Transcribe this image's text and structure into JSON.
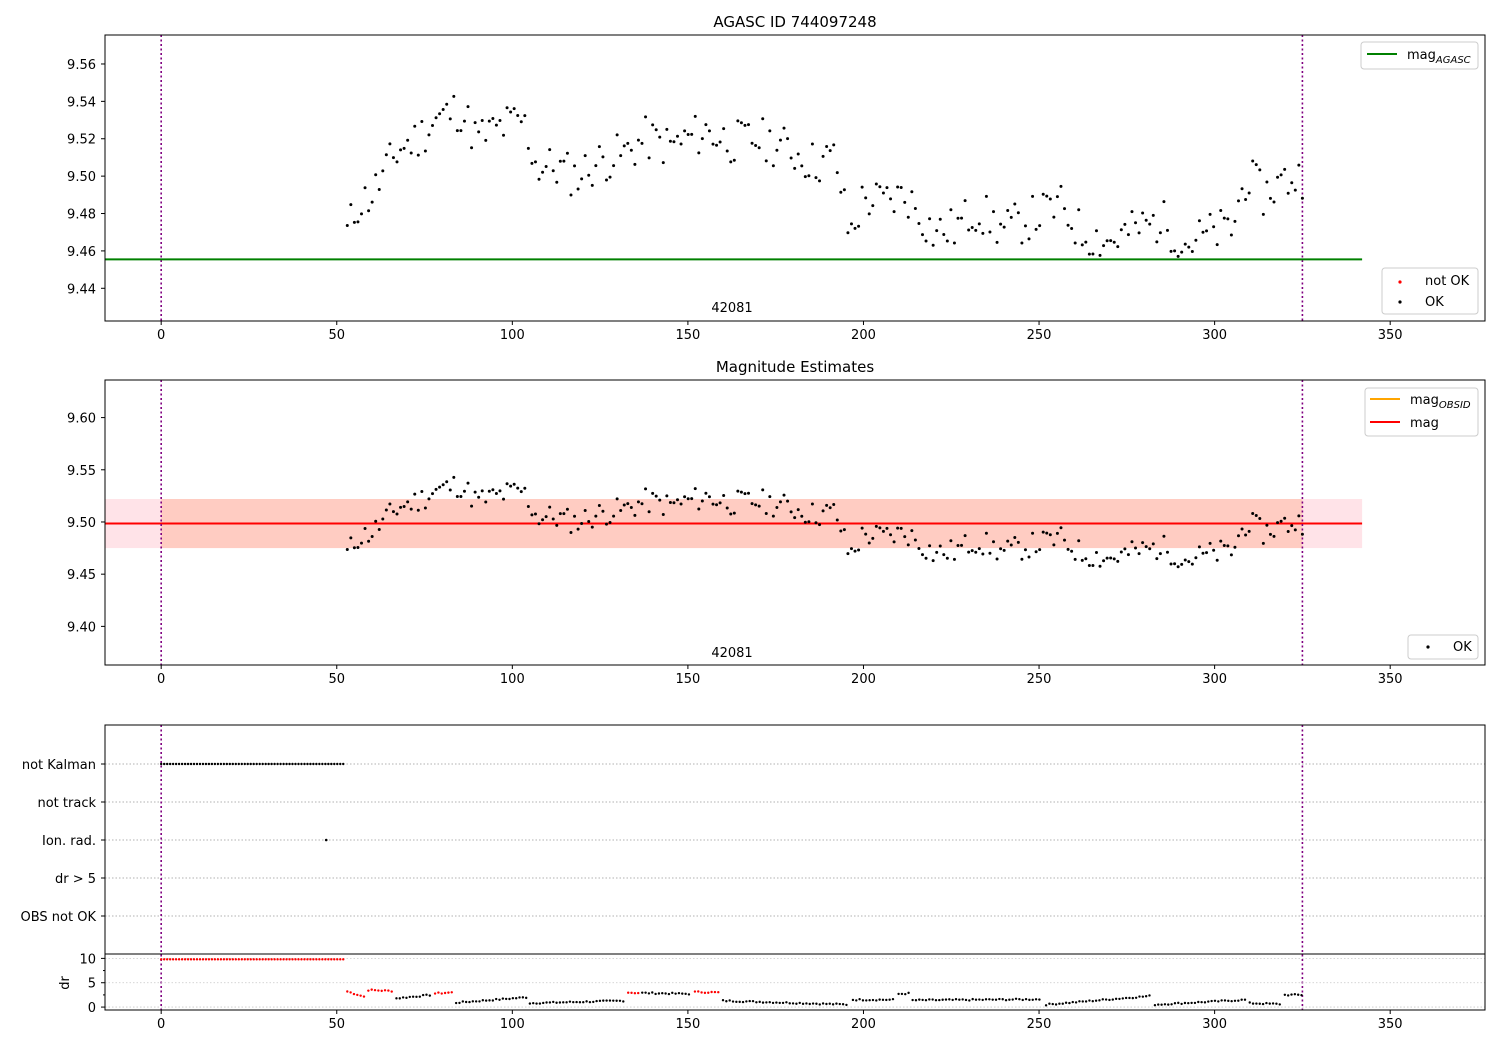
{
  "chart_data": [
    {
      "type": "scatter",
      "title": "AGASC ID 744097248",
      "annotation": "42081",
      "x_ticks": [
        "0",
        "50",
        "100",
        "150",
        "200",
        "250",
        "300",
        "350"
      ],
      "y_ticks": [
        "9.44",
        "9.46",
        "9.48",
        "9.50",
        "9.52",
        "9.54",
        "9.56"
      ],
      "xlim": [
        -16,
        377
      ],
      "ylim": [
        9.4225,
        9.5755
      ],
      "vlines": [
        0,
        325
      ],
      "hline": {
        "name": "mag_AGASC",
        "value": 9.4555,
        "x_end": 342,
        "color": "#008000"
      },
      "legend_lines": [
        {
          "label": "mag",
          "subscript": "AGASC",
          "color": "#008000"
        }
      ],
      "legend_points": [
        {
          "label": "not OK",
          "color": "#ff0000"
        },
        {
          "label": "OK",
          "color": "#000000"
        }
      ],
      "series": [
        {
          "name": "OK",
          "color": "#000000",
          "x_start": 53,
          "x_end": 325,
          "count": 270,
          "anchors": [
            [
              53,
              9.47
            ],
            [
              56,
              9.485
            ],
            [
              60,
              9.49
            ],
            [
              65,
              9.506
            ],
            [
              68,
              9.515
            ],
            [
              73,
              9.52
            ],
            [
              78,
              9.53
            ],
            [
              85,
              9.536
            ],
            [
              90,
              9.52
            ],
            [
              98,
              9.527
            ],
            [
              103,
              9.53
            ],
            [
              107,
              9.505
            ],
            [
              112,
              9.505
            ],
            [
              118,
              9.5
            ],
            [
              125,
              9.508
            ],
            [
              132,
              9.512
            ],
            [
              138,
              9.52
            ],
            [
              145,
              9.516
            ],
            [
              155,
              9.524
            ],
            [
              163,
              9.518
            ],
            [
              170,
              9.52
            ],
            [
              178,
              9.515
            ],
            [
              186,
              9.507
            ],
            [
              192,
              9.51
            ],
            [
              196,
              9.468
            ],
            [
              200,
              9.488
            ],
            [
              206,
              9.486
            ],
            [
              212,
              9.49
            ],
            [
              220,
              9.47
            ],
            [
              226,
              9.472
            ],
            [
              232,
              9.482
            ],
            [
              240,
              9.471
            ],
            [
              248,
              9.478
            ],
            [
              256,
              9.484
            ],
            [
              262,
              9.47
            ],
            [
              270,
              9.465
            ],
            [
              278,
              9.472
            ],
            [
              285,
              9.476
            ],
            [
              292,
              9.464
            ],
            [
              300,
              9.47
            ],
            [
              305,
              9.472
            ],
            [
              309,
              9.5
            ],
            [
              314,
              9.49
            ],
            [
              319,
              9.497
            ],
            [
              325,
              9.5
            ]
          ]
        }
      ]
    },
    {
      "type": "scatter",
      "title": "Magnitude Estimates",
      "annotation": "42081",
      "x_ticks": [
        "0",
        "50",
        "100",
        "150",
        "200",
        "250",
        "300",
        "350"
      ],
      "y_ticks": [
        "9.40",
        "9.45",
        "9.50",
        "9.55",
        "9.60"
      ],
      "xlim": [
        -16,
        377
      ],
      "ylim": [
        9.363,
        9.636
      ],
      "vlines": [
        0,
        325
      ],
      "mag_line": {
        "value": 9.4985,
        "color": "#ff0000"
      },
      "band": {
        "low": 9.475,
        "high": 9.522,
        "x_end": 342,
        "colors": [
          "#ffc0cb",
          "#ffa07a"
        ]
      },
      "legend_lines": [
        {
          "label": "mag",
          "subscript": "OBSID",
          "color": "#ffa500"
        },
        {
          "label": "mag",
          "subscript": "",
          "color": "#ff0000"
        }
      ],
      "legend_points": [
        {
          "label": "OK",
          "color": "#000000"
        }
      ]
    },
    {
      "type": "scatter",
      "flags": [
        "not Kalman",
        "not track",
        "Ion. rad.",
        "dr > 5",
        "OBS not OK"
      ],
      "x_ticks": [
        "0",
        "50",
        "100",
        "150",
        "200",
        "250",
        "300",
        "350"
      ],
      "xlim": [
        -16,
        377
      ],
      "vlines": [
        0,
        325
      ],
      "not_kalman_range": [
        0,
        52.5
      ],
      "ion_rad_point": 47,
      "dr": {
        "ylabel": "dr",
        "y_ticks": [
          "0",
          "5",
          "10"
        ],
        "ylim": [
          -0.6,
          10.9
        ],
        "saturated": {
          "x_start": 0,
          "x_end": 52.5,
          "value": 9.8,
          "color": "#ff0000"
        },
        "segments": [
          {
            "x_start": 53,
            "x_end": 58,
            "v0": 3.2,
            "v1": 2.1,
            "color": "#ff0000"
          },
          {
            "x_start": 59,
            "x_end": 66,
            "v0": 3.5,
            "v1": 3.3,
            "color": "#ff0000"
          },
          {
            "x_start": 67,
            "x_end": 77,
            "v0": 1.8,
            "v1": 2.5,
            "color": "#000000"
          },
          {
            "x_start": 78,
            "x_end": 83,
            "v0": 2.8,
            "v1": 3.0,
            "color": "#ff0000"
          },
          {
            "x_start": 84,
            "x_end": 104,
            "v0": 0.9,
            "v1": 2.0,
            "color": "#000000"
          },
          {
            "x_start": 105,
            "x_end": 132,
            "v0": 0.8,
            "v1": 1.3,
            "color": "#000000"
          },
          {
            "x_start": 133,
            "x_end": 136,
            "v0": 3.0,
            "v1": 2.9,
            "color": "#ff0000"
          },
          {
            "x_start": 137,
            "x_end": 151,
            "v0": 2.9,
            "v1": 2.7,
            "color": "#000000"
          },
          {
            "x_start": 152,
            "x_end": 159,
            "v0": 3.1,
            "v1": 3.0,
            "color": "#ff0000"
          },
          {
            "x_start": 160,
            "x_end": 196,
            "v0": 1.3,
            "v1": 0.5,
            "color": "#000000"
          },
          {
            "x_start": 197,
            "x_end": 209,
            "v0": 1.5,
            "v1": 1.5,
            "color": "#000000"
          },
          {
            "x_start": 210,
            "x_end": 213,
            "v0": 2.7,
            "v1": 2.8,
            "color": "#000000"
          },
          {
            "x_start": 214,
            "x_end": 251,
            "v0": 1.4,
            "v1": 1.6,
            "color": "#000000"
          },
          {
            "x_start": 252,
            "x_end": 282,
            "v0": 0.5,
            "v1": 2.3,
            "color": "#000000"
          },
          {
            "x_start": 283,
            "x_end": 309,
            "v0": 0.5,
            "v1": 1.5,
            "color": "#000000"
          },
          {
            "x_start": 310,
            "x_end": 319,
            "v0": 0.8,
            "v1": 0.6,
            "color": "#000000"
          },
          {
            "x_start": 320,
            "x_end": 325,
            "v0": 2.5,
            "v1": 2.5,
            "color": "#000000"
          }
        ]
      }
    }
  ]
}
